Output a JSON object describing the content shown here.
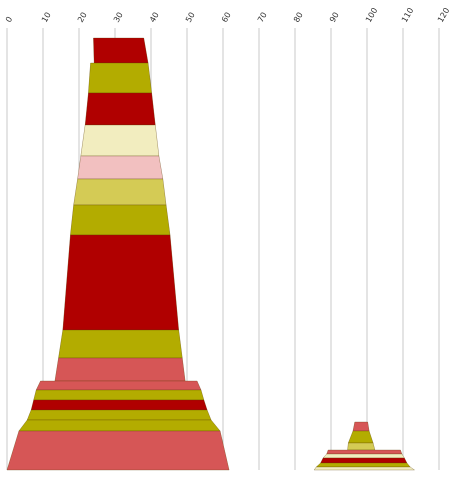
{
  "chart_data": {
    "type": "area",
    "subtype": "stacked-trapezoid-shapes",
    "axis": {
      "position": "top",
      "ticks": [
        "0",
        "10",
        "20",
        "30",
        "40",
        "50",
        "60",
        "70",
        "80",
        "90",
        "100",
        "110",
        "120"
      ],
      "min": 0,
      "max": 120,
      "grid": true
    },
    "colors": {
      "red": "#b00000",
      "olive": "#b3ac00",
      "cream": "#f2edbf",
      "pink": "#f2c0c0",
      "khaki": "#d4cb55",
      "coral": "#d65656"
    },
    "shapes": [
      {
        "name": "left-stack",
        "bands": [
          {
            "x0_top": 24,
            "x1_top": 38,
            "x0_bot": 24.2,
            "x1_bot": 39.2,
            "color": "red"
          },
          {
            "x0_top": 23.2,
            "x1_top": 39.2,
            "x0_bot": 22.6,
            "x1_bot": 40.2,
            "color": "olive"
          },
          {
            "x0_top": 22.6,
            "x1_top": 40.2,
            "x0_bot": 21.7,
            "x1_bot": 41.2,
            "color": "red"
          },
          {
            "x0_top": 21.7,
            "x1_top": 41.2,
            "x0_bot": 20.5,
            "x1_bot": 42.2,
            "color": "cream"
          },
          {
            "x0_top": 20.5,
            "x1_top": 42.2,
            "x0_bot": 19.6,
            "x1_bot": 43.3,
            "color": "pink"
          },
          {
            "x0_top": 19.6,
            "x1_top": 43.3,
            "x0_bot": 18.5,
            "x1_bot": 44.2,
            "color": "khaki"
          },
          {
            "x0_top": 18.5,
            "x1_top": 44.2,
            "x0_bot": 17.6,
            "x1_bot": 45.3,
            "color": "olive"
          },
          {
            "x0_top": 17.6,
            "x1_top": 45.3,
            "x0_bot": 15.5,
            "x1_bot": 47.7,
            "color": "red"
          },
          {
            "x0_top": 15.5,
            "x1_top": 47.7,
            "x0_bot": 14.3,
            "x1_bot": 48.7,
            "color": "olive"
          },
          {
            "x0_top": 14.3,
            "x1_top": 48.7,
            "x0_bot": 13.3,
            "x1_bot": 49.5,
            "color": "coral"
          },
          {
            "x0_top": 9.3,
            "x1_top": 52.8,
            "x0_bot": 8.1,
            "x1_bot": 53.9,
            "color": "coral"
          },
          {
            "x0_top": 8.1,
            "x1_top": 53.9,
            "x0_bot": 7.4,
            "x1_bot": 54.7,
            "color": "olive"
          },
          {
            "x0_top": 7.4,
            "x1_top": 54.7,
            "x0_bot": 6.7,
            "x1_bot": 55.6,
            "color": "red"
          },
          {
            "x0_top": 6.7,
            "x1_top": 55.6,
            "x0_bot": 5.6,
            "x1_bot": 56.7,
            "color": "olive"
          },
          {
            "x0_top": 5.6,
            "x1_top": 56.7,
            "x0_bot": 3.3,
            "x1_bot": 59.2,
            "color": "olive"
          },
          {
            "x0_top": 3.3,
            "x1_top": 59.2,
            "x0_bot": 0,
            "x1_bot": 61.7,
            "color": "coral"
          }
        ]
      },
      {
        "name": "right-stack",
        "bands": [
          {
            "x0_top": 96.6,
            "x1_top": 100.2,
            "x0_bot": 96.1,
            "x1_bot": 100.6,
            "color": "coral"
          },
          {
            "x0_top": 96.1,
            "x1_top": 100.6,
            "x0_bot": 94.8,
            "x1_bot": 101.7,
            "color": "olive"
          },
          {
            "x0_top": 94.8,
            "x1_top": 101.7,
            "x0_bot": 94.6,
            "x1_bot": 102.2,
            "color": "khaki"
          },
          {
            "x0_top": 89.2,
            "x1_top": 109.3,
            "x0_bot": 88.8,
            "x1_bot": 109.7,
            "color": "coral"
          },
          {
            "x0_top": 88.8,
            "x1_top": 109.7,
            "x0_bot": 87.8,
            "x1_bot": 110.4,
            "color": "cream"
          },
          {
            "x0_top": 87.8,
            "x1_top": 110.4,
            "x0_bot": 87.1,
            "x1_bot": 111.1,
            "color": "red"
          },
          {
            "x0_top": 87.1,
            "x1_top": 111.1,
            "x0_bot": 85.9,
            "x1_bot": 112.0,
            "color": "olive"
          },
          {
            "x0_top": 85.9,
            "x1_top": 112.0,
            "x0_bot": 85.3,
            "x1_bot": 113.2,
            "color": "cream"
          }
        ]
      }
    ]
  }
}
